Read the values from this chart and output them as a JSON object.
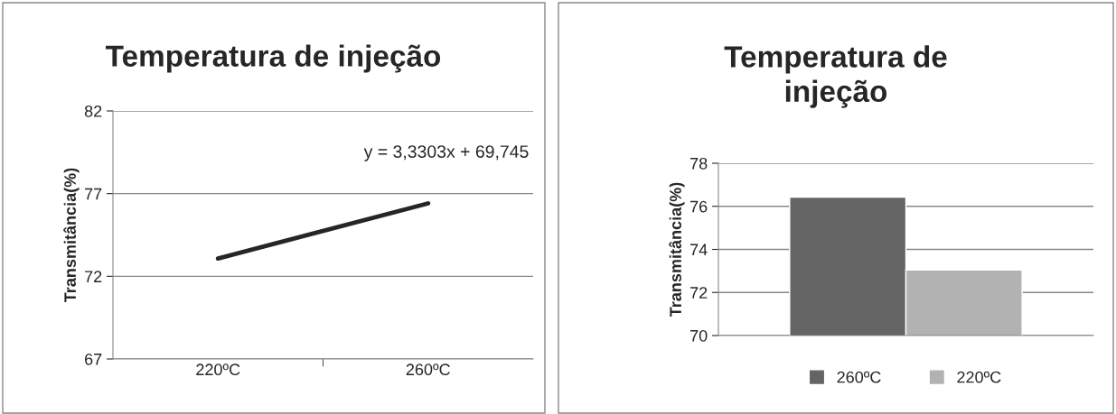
{
  "chart_data": [
    {
      "type": "line",
      "title": "Temperatura de injeção",
      "ylabel": "Transmitância(%)",
      "categories": [
        "220ºC",
        "260ºC"
      ],
      "series": [
        {
          "color": "#262626",
          "values": [
            73.08,
            76.41
          ]
        }
      ],
      "ylim": [
        67,
        82
      ],
      "yticks": [
        67,
        72,
        77,
        82
      ],
      "grid": "y",
      "marker": "none",
      "line_style": "solid",
      "annotations": [
        "y = 3,3303x + 69,745"
      ]
    },
    {
      "type": "bar",
      "title": "Temperatura de injeção",
      "ylabel": "Transmitância(%)",
      "categories": [
        null
      ],
      "series": [
        {
          "name": "260ºC",
          "color": "#646464",
          "values": [
            76.43
          ]
        },
        {
          "name": "220ºC",
          "color": "#b2b2b2",
          "values": [
            73.05
          ]
        }
      ],
      "ylim": [
        70,
        78
      ],
      "yticks": [
        70,
        72,
        74,
        76,
        78
      ],
      "grid": "y",
      "legend": "bottom"
    }
  ]
}
